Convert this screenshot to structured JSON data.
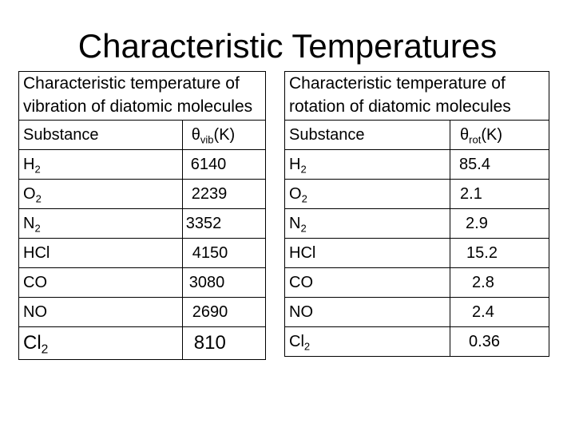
{
  "slide": {
    "title": "Characteristic Temperatures"
  },
  "vibration_table": {
    "heading": "Characteristic temperature of vibration of diatomic molecules",
    "col_substance": "Substance",
    "col_value_symbol": "θ",
    "col_value_sub": "vib",
    "col_value_unit": "(K)",
    "rows": [
      {
        "base": "H",
        "sub": "2",
        "value": "6140"
      },
      {
        "base": "O",
        "sub": "2",
        "value": "2239"
      },
      {
        "base": "N",
        "sub": "2",
        "value": "3352"
      },
      {
        "base": "HCl",
        "sub": "",
        "value": "4150"
      },
      {
        "base": "CO",
        "sub": "",
        "value": "3080"
      },
      {
        "base": "NO",
        "sub": "",
        "value": "2690"
      },
      {
        "base": "Cl",
        "sub": "2",
        "value": "810"
      }
    ]
  },
  "rotation_table": {
    "heading": "Characteristic temperature of rotation of diatomic molecules",
    "col_substance": "Substance",
    "col_value_symbol": "θ",
    "col_value_sub": "rot",
    "col_value_unit": "(K)",
    "rows": [
      {
        "base": "H",
        "sub": "2",
        "value": "85.4"
      },
      {
        "base": "O",
        "sub": "2",
        "value": "2.1"
      },
      {
        "base": "N",
        "sub": "2",
        "value": "2.9"
      },
      {
        "base": "HCl",
        "sub": "",
        "value": "15.2"
      },
      {
        "base": "CO",
        "sub": "",
        "value": "2.8"
      },
      {
        "base": "NO",
        "sub": "",
        "value": "2.4"
      },
      {
        "base": "Cl",
        "sub": "2",
        "value": "0.36"
      }
    ]
  }
}
